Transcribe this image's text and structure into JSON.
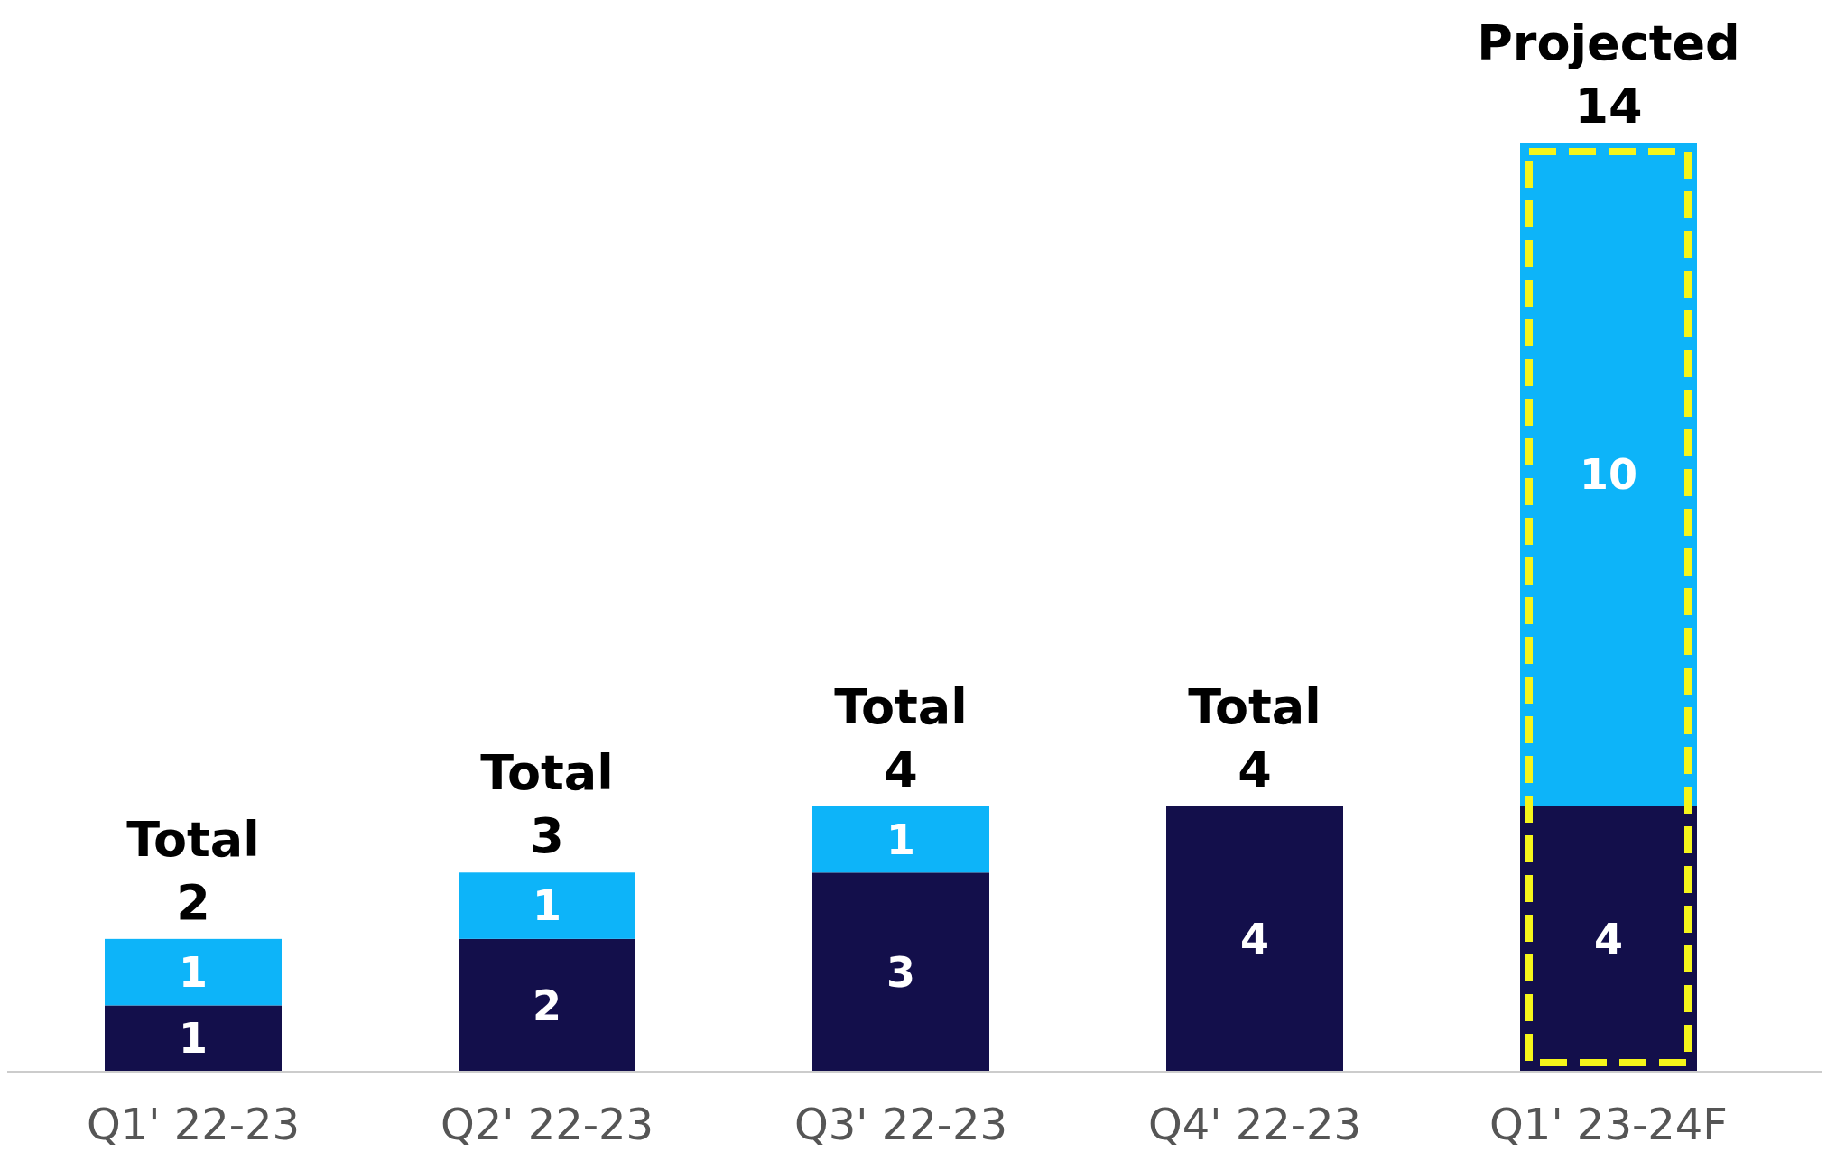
{
  "chart_data": {
    "type": "bar",
    "stacked": true,
    "categories": [
      "Q1' 22-23",
      "Q2' 22-23",
      "Q3' 22-23",
      "Q4' 22-23",
      "Q1' 23-24F"
    ],
    "series": [
      {
        "color": "#130f4b",
        "values": [
          1,
          2,
          3,
          4,
          4
        ]
      },
      {
        "color": "#0db4f9",
        "values": [
          1,
          1,
          1,
          null,
          10
        ]
      }
    ],
    "data_labels": true,
    "totals": [
      "Total 2",
      "Total 3",
      "Total 4",
      "Total 4",
      "Projected 14"
    ]
  }
}
